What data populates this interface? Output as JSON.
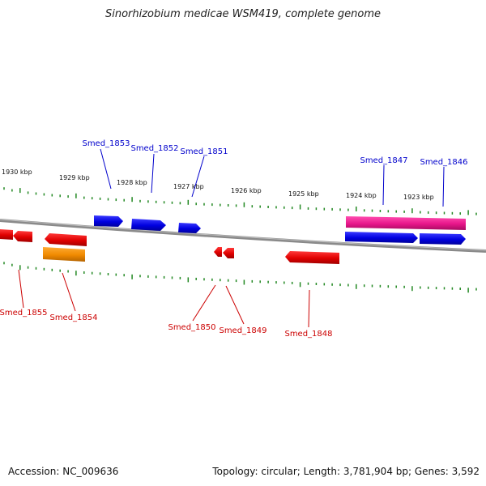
{
  "title": "Sinorhizobium medicae WSM419, complete genome",
  "accession": "Accession: NC_009636",
  "summary": "Topology: circular; Length: 3,781,904 bp; Genes: 3,592",
  "colors": {
    "forward_gene": "#0000ee",
    "reverse_gene": "#ee0000",
    "rna_gene": "#ff9900",
    "highlight_gene": "#ee1188",
    "ticks": "#228822",
    "axis": "#888888"
  },
  "scale_labels": [
    "1930 kbp",
    "1929 kbp",
    "1928 kbp",
    "1927 kbp",
    "1926 kbp",
    "1925 kbp",
    "1924 kbp",
    "1923 kbp"
  ],
  "genes_forward": [
    {
      "name": "Smed_1853"
    },
    {
      "name": "Smed_1852"
    },
    {
      "name": "Smed_1851"
    },
    {
      "name": "Smed_1847"
    },
    {
      "name": "Smed_1846"
    }
  ],
  "genes_reverse": [
    {
      "name": "Smed_1855"
    },
    {
      "name": "Smed_1854"
    },
    {
      "name": "Smed_1850"
    },
    {
      "name": "Smed_1849"
    },
    {
      "name": "Smed_1848"
    }
  ]
}
